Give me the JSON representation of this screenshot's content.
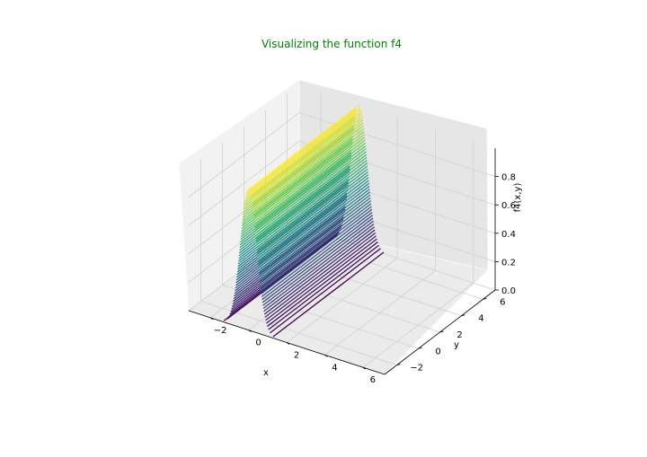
{
  "chart_data": {
    "type": "surface-3d-contour",
    "title": "Visualizing the function f4",
    "title_color": "#008000",
    "xlabel": "x",
    "ylabel": "y",
    "zlabel": "f4(x,y)",
    "xlim": [
      -3.14,
      7.14
    ],
    "ylim": [
      -3.14,
      7.14
    ],
    "zlim": [
      0,
      1
    ],
    "x_ticks": [
      -2,
      0,
      2,
      4,
      6
    ],
    "y_ticks": [
      -2,
      0,
      2,
      4,
      6
    ],
    "z_ticks": [
      0.0,
      0.2,
      0.4,
      0.6,
      0.8
    ],
    "x_tick_labels": [
      "−2",
      "0",
      "2",
      "4",
      "6"
    ],
    "y_tick_labels": [
      "−2",
      "0",
      "2",
      "4",
      "6"
    ],
    "z_tick_labels": [
      "0.0",
      "0.2",
      "0.4",
      "0.6",
      "0.8"
    ],
    "contour_levels": 50,
    "colormap": "viridis",
    "colormap_stops": [
      "#440154",
      "#3b528b",
      "#21918c",
      "#5ec962",
      "#fde725"
    ],
    "surface": {
      "description_formula": "ridge along the y direction, peak near x = 0",
      "peak_value": 1.0,
      "ridge_center_x": 0,
      "ridge_width": 0.6
    },
    "grid": true
  }
}
